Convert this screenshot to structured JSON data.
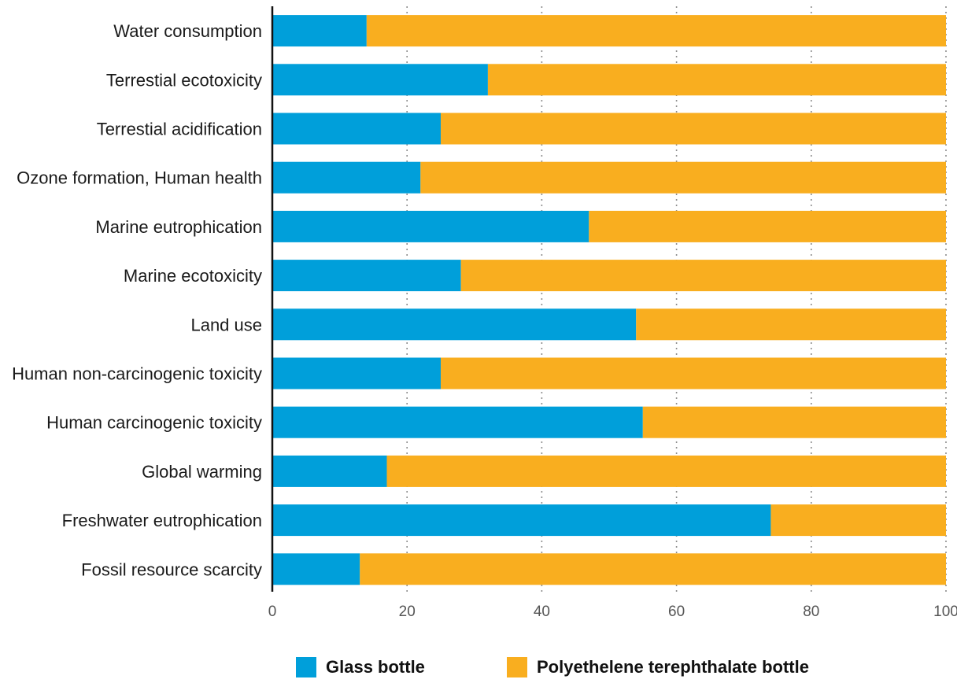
{
  "chart_data": {
    "type": "bar",
    "orientation": "horizontal",
    "stacked": true,
    "categories": [
      "Water consumption",
      "Terrestial ecotoxicity",
      "Terrestial acidification",
      "Ozone formation, Human health",
      "Marine eutrophication",
      "Marine ecotoxicity",
      "Land use",
      "Human non-carcinogenic toxicity",
      "Human carcinogenic toxicity",
      "Global warming",
      "Freshwater eutrophication",
      "Fossil resource scarcity"
    ],
    "series": [
      {
        "name": "Glass bottle",
        "color": "#009fda",
        "values": [
          14,
          32,
          25,
          22,
          47,
          28,
          54,
          25,
          55,
          17,
          74,
          13
        ]
      },
      {
        "name": "Polyethelene terephthalate bottle",
        "color": "#f9ae1f",
        "values": [
          86,
          68,
          75,
          78,
          53,
          72,
          46,
          75,
          45,
          83,
          26,
          87
        ]
      }
    ],
    "xlim": [
      0,
      100
    ],
    "xticks": [
      "0",
      "20",
      "40",
      "60",
      "80",
      "100"
    ],
    "grid": "vertical dotted",
    "legend_position": "bottom"
  }
}
